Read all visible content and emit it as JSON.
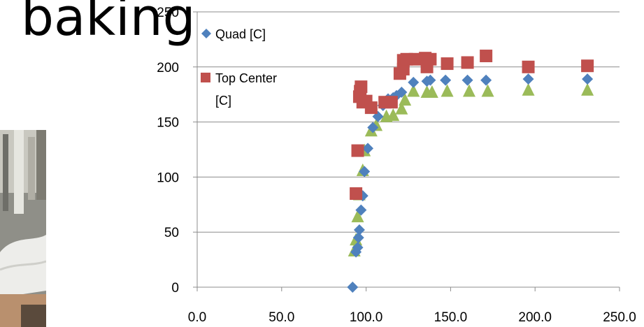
{
  "slide": {
    "title": "baking"
  },
  "photo": {
    "description_icon": "person-in-white-cap-photo"
  },
  "chart_data": {
    "type": "scatter",
    "xlim": [
      0,
      250
    ],
    "ylim": [
      0,
      250
    ],
    "x_ticks": [
      "0.0",
      "50.0",
      "100.0",
      "150.0",
      "200.0",
      "250.0"
    ],
    "y_ticks": [
      "0",
      "50",
      "100",
      "150",
      "200",
      "250"
    ],
    "grid": "horizontal",
    "legend_placement": "top-left",
    "series": [
      {
        "name": "Quad [C]",
        "marker": "diamond",
        "color": "#4F81BD",
        "points": [
          [
            92,
            0
          ],
          [
            94,
            32
          ],
          [
            95,
            36
          ],
          [
            95.5,
            45
          ],
          [
            96,
            52
          ],
          [
            97,
            70
          ],
          [
            98,
            83
          ],
          [
            99,
            105
          ],
          [
            101,
            126
          ],
          [
            104,
            145
          ],
          [
            107,
            155
          ],
          [
            110,
            165
          ],
          [
            113,
            171
          ],
          [
            116,
            172
          ],
          [
            118,
            174
          ],
          [
            121,
            177
          ],
          [
            128,
            186
          ],
          [
            136,
            187
          ],
          [
            138,
            188
          ],
          [
            147,
            188
          ],
          [
            160,
            188
          ],
          [
            171,
            188
          ],
          [
            196,
            189
          ],
          [
            231,
            189
          ]
        ]
      },
      {
        "name": "Top Center [C]",
        "marker": "square",
        "color": "#C0504D",
        "points": [
          [
            94,
            85
          ],
          [
            95,
            124
          ],
          [
            96,
            173
          ],
          [
            96.5,
            178
          ],
          [
            97,
            182
          ],
          [
            98,
            168
          ],
          [
            100,
            169
          ],
          [
            103,
            163
          ],
          [
            111,
            168
          ],
          [
            115,
            168
          ],
          [
            120,
            194
          ],
          [
            122,
            198
          ],
          [
            122,
            206
          ],
          [
            124,
            207
          ],
          [
            129,
            207
          ],
          [
            135,
            208
          ],
          [
            136,
            200
          ],
          [
            138,
            207
          ],
          [
            148,
            203
          ],
          [
            160,
            204
          ],
          [
            171,
            210
          ],
          [
            196,
            200
          ],
          [
            231,
            201
          ]
        ]
      },
      {
        "name": "",
        "marker": "triangle",
        "color": "#9BBB59",
        "points": [
          [
            93,
            33
          ],
          [
            94,
            43
          ],
          [
            95,
            64
          ],
          [
            96,
            84
          ],
          [
            98,
            106
          ],
          [
            99,
            124
          ],
          [
            103,
            142
          ],
          [
            106,
            147
          ],
          [
            112,
            155
          ],
          [
            116,
            156
          ],
          [
            121,
            162
          ],
          [
            123,
            170
          ],
          [
            128,
            178
          ],
          [
            136,
            177
          ],
          [
            139,
            177
          ],
          [
            148,
            178
          ],
          [
            161,
            178
          ],
          [
            172,
            178
          ],
          [
            196,
            179
          ],
          [
            231,
            179
          ]
        ]
      }
    ],
    "legend": [
      {
        "label": "Quad [C]",
        "marker": "diamond",
        "color": "#4F81BD"
      },
      {
        "label_line1": "Top Center",
        "label_line2": "[C]",
        "marker": "square",
        "color": "#C0504D"
      }
    ]
  }
}
